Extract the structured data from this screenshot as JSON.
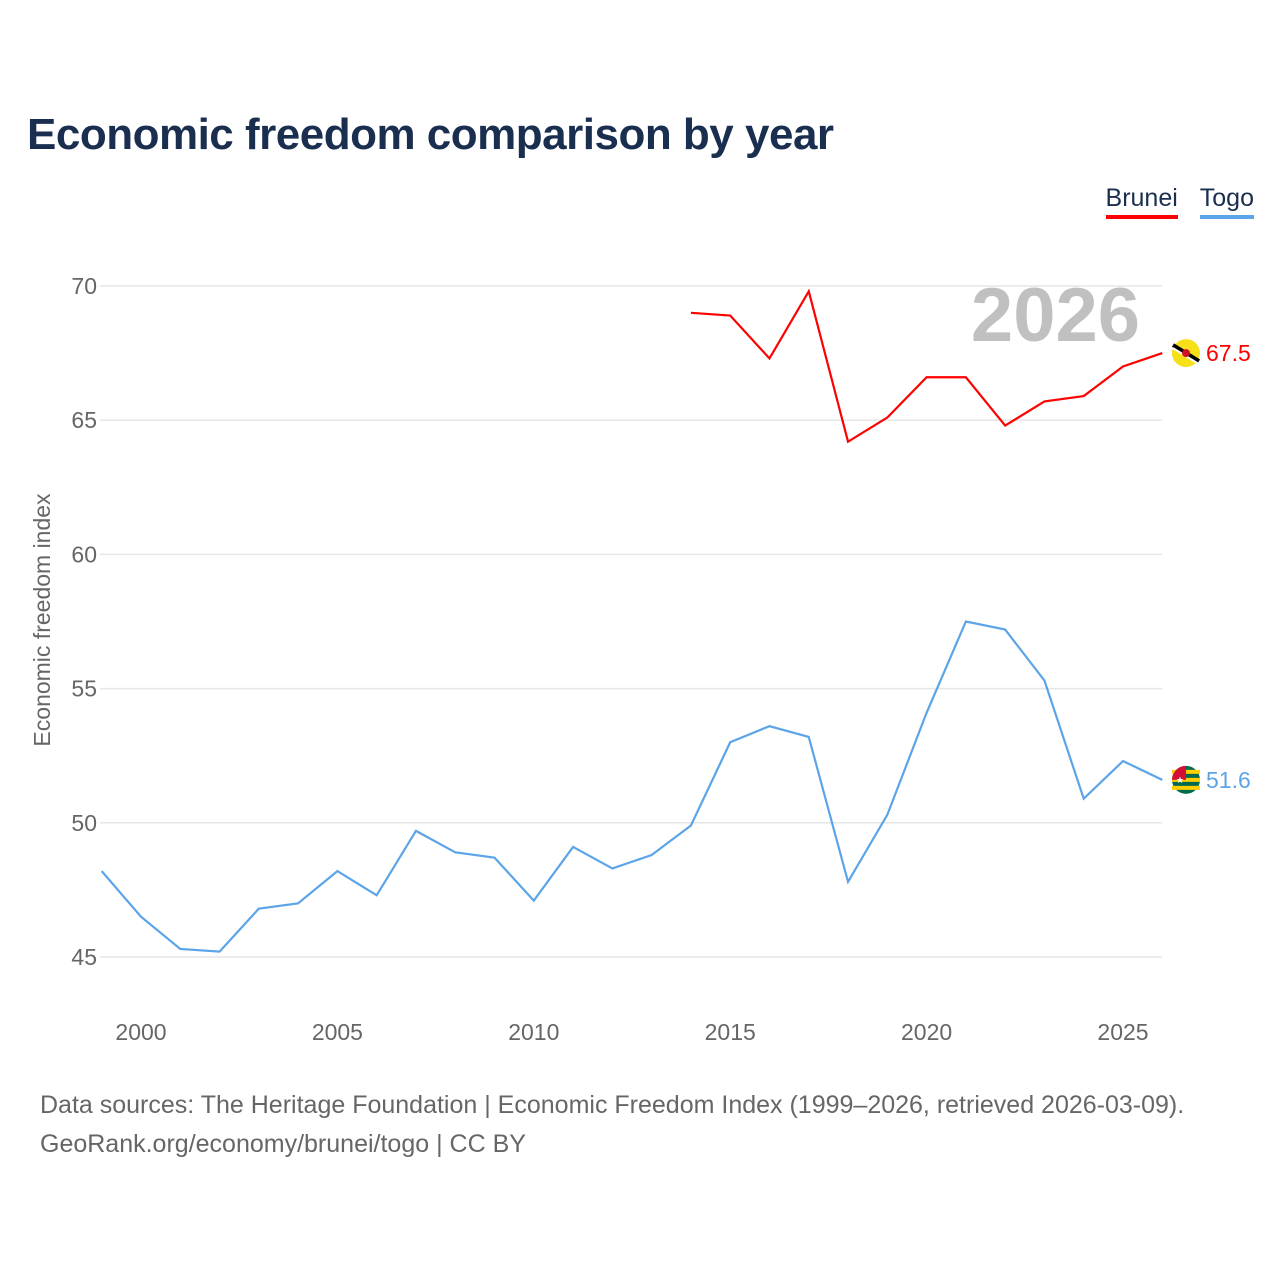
{
  "title": "Economic freedom comparison by year",
  "legend": [
    {
      "label": "Brunei",
      "color": "#ff0000"
    },
    {
      "label": "Togo",
      "color": "#5ba4e8"
    }
  ],
  "source_line1": "Data sources: The Heritage Foundation | Economic Freedom Index (1999–2026, retrieved 2026-03-09).",
  "source_line2": "GeoRank.org/economy/brunei/togo | CC BY",
  "chart_data": {
    "type": "line",
    "title": "Economic freedom comparison by year",
    "ylabel": "Economic freedom index",
    "xlabel": "",
    "xlim": [
      1999,
      2026
    ],
    "ylim": [
      43,
      72
    ],
    "yticks": [
      45,
      50,
      55,
      60,
      65,
      70
    ],
    "xticks": [
      2000,
      2005,
      2010,
      2015,
      2020,
      2025
    ],
    "grid": true,
    "year_watermark": "2026",
    "series": [
      {
        "name": "Brunei",
        "color": "#ff0000",
        "end_label": "67.5",
        "x": [
          2014,
          2015,
          2016,
          2017,
          2018,
          2019,
          2020,
          2021,
          2022,
          2023,
          2024,
          2025,
          2026
        ],
        "values": [
          69.0,
          68.9,
          67.3,
          69.8,
          64.2,
          65.1,
          66.6,
          66.6,
          64.8,
          65.7,
          65.9,
          67.0,
          67.5
        ]
      },
      {
        "name": "Togo",
        "color": "#5ba4e8",
        "end_label": "51.6",
        "x": [
          1999,
          2000,
          2001,
          2002,
          2003,
          2004,
          2005,
          2006,
          2007,
          2008,
          2009,
          2010,
          2011,
          2012,
          2013,
          2014,
          2015,
          2016,
          2017,
          2018,
          2019,
          2020,
          2021,
          2022,
          2023,
          2024,
          2025,
          2026
        ],
        "values": [
          48.2,
          46.5,
          45.3,
          45.2,
          46.8,
          47.0,
          48.2,
          47.3,
          49.7,
          48.9,
          48.7,
          47.1,
          49.1,
          48.3,
          48.8,
          49.9,
          53.0,
          53.6,
          53.2,
          47.8,
          50.3,
          54.1,
          57.5,
          57.2,
          55.3,
          50.9,
          52.3,
          51.6
        ]
      }
    ]
  }
}
